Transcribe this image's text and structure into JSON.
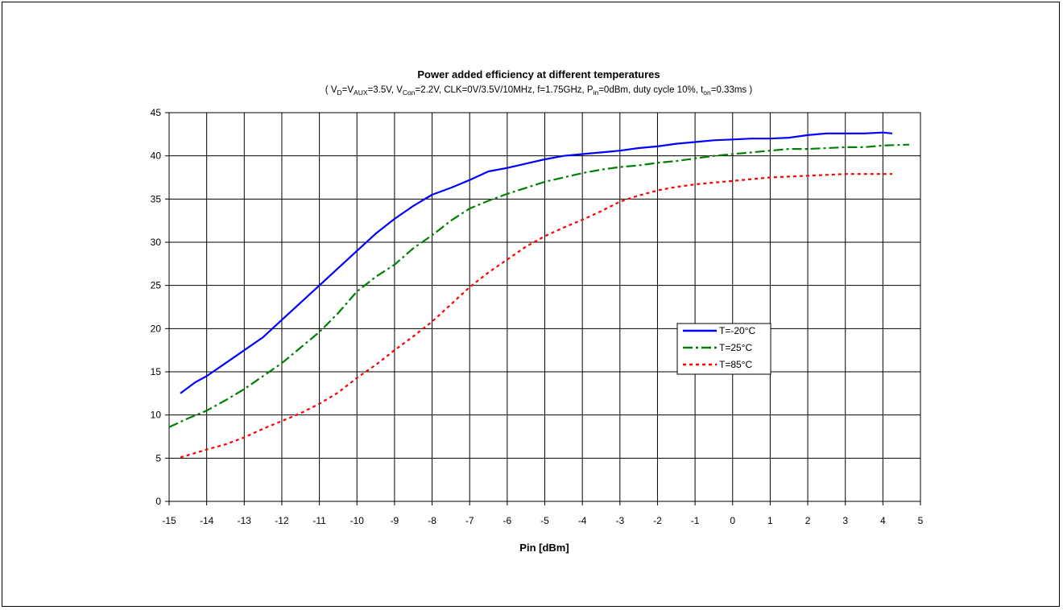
{
  "chart_data": {
    "type": "line",
    "title": "Power added efficiency at different temperatures",
    "subtitle": {
      "parts": [
        {
          "t": "( V"
        },
        {
          "t": "D",
          "sub": true
        },
        {
          "t": "=V"
        },
        {
          "t": "AUX",
          "sub": true
        },
        {
          "t": "=3.5V, V"
        },
        {
          "t": "Con",
          "sub": true
        },
        {
          "t": "=2.2V, CLK=0V/3.5V/10MHz, f=1.75GHz, P"
        },
        {
          "t": "in",
          "sub": true
        },
        {
          "t": "=0dBm, duty cycle 10%, t"
        },
        {
          "t": "on",
          "sub": true
        },
        {
          "t": "=0.33ms )"
        }
      ]
    },
    "xlabel": "Pin [dBm]",
    "ylabel": "",
    "xlim": [
      -15,
      5
    ],
    "ylim": [
      0,
      45
    ],
    "x_ticks": [
      "-15",
      "-14",
      "-13",
      "-12",
      "-11",
      "-10",
      "-9",
      "-8",
      "-7",
      "-6",
      "-5",
      "-4",
      "-3",
      "-2",
      "-1",
      "0",
      "1",
      "2",
      "3",
      "4",
      "5"
    ],
    "y_ticks": [
      "0",
      "5",
      "10",
      "15",
      "20",
      "25",
      "30",
      "35",
      "40",
      "45"
    ],
    "grid": true,
    "legend_position": "center-right",
    "series": [
      {
        "name": "T=-20°C",
        "color": "#0000ff",
        "dash": "solid",
        "x": [
          -14.7,
          -14.3,
          -14,
          -13.5,
          -13,
          -12.5,
          -12,
          -11.5,
          -11,
          -10.5,
          -10,
          -9.5,
          -9,
          -8.5,
          -8,
          -7.5,
          -7,
          -6.5,
          -6,
          -5.5,
          -5,
          -4.5,
          -4,
          -3.5,
          -3,
          -2.5,
          -2,
          -1.5,
          -1,
          -0.5,
          0,
          0.5,
          1,
          1.5,
          2,
          2.5,
          3,
          3.5,
          4,
          4.25
        ],
        "y": [
          12.5,
          13.8,
          14.5,
          16,
          17.5,
          19,
          21,
          23,
          25,
          27,
          29,
          31,
          32.7,
          34.2,
          35.5,
          36.3,
          37.2,
          38.2,
          38.6,
          39.1,
          39.6,
          40.0,
          40.2,
          40.4,
          40.6,
          40.9,
          41.1,
          41.4,
          41.6,
          41.8,
          41.9,
          42.0,
          42.0,
          42.1,
          42.4,
          42.6,
          42.6,
          42.6,
          42.7,
          42.6
        ]
      },
      {
        "name": "T=25°C",
        "color": "#008000",
        "dash": "dash-dot",
        "x": [
          -15,
          -14.5,
          -14,
          -13.5,
          -13,
          -12.5,
          -12,
          -11.5,
          -11,
          -10.5,
          -10,
          -9.5,
          -9,
          -8.5,
          -8,
          -7.5,
          -7,
          -6.5,
          -6,
          -5.5,
          -5,
          -4.5,
          -4,
          -3.5,
          -3,
          -2.5,
          -2,
          -1.5,
          -1,
          -0.5,
          0,
          0.5,
          1,
          1.5,
          2,
          2.5,
          3,
          3.5,
          4,
          4.7
        ],
        "y": [
          8.6,
          9.6,
          10.5,
          11.7,
          13.0,
          14.5,
          16,
          17.8,
          19.6,
          21.8,
          24.3,
          26.0,
          27.4,
          29.3,
          30.8,
          32.5,
          33.9,
          34.8,
          35.6,
          36.3,
          37.0,
          37.5,
          38.0,
          38.4,
          38.7,
          38.9,
          39.2,
          39.4,
          39.7,
          40.0,
          40.2,
          40.4,
          40.6,
          40.8,
          40.8,
          40.9,
          41.0,
          41.0,
          41.2,
          41.3
        ]
      },
      {
        "name": "T=85°C",
        "color": "#ff0000",
        "dash": "dotted",
        "x": [
          -14.7,
          -14.3,
          -14,
          -13.5,
          -13,
          -12.5,
          -12,
          -11.5,
          -11,
          -10.5,
          -10,
          -9.5,
          -9,
          -8.5,
          -8,
          -7.5,
          -7,
          -6.5,
          -6,
          -5.5,
          -5,
          -4.5,
          -4,
          -3.5,
          -3,
          -2.5,
          -2,
          -1.5,
          -1,
          -0.5,
          0,
          0.5,
          1,
          1.5,
          2,
          2.5,
          3,
          3.5,
          4,
          4.25
        ],
        "y": [
          5.1,
          5.6,
          6.0,
          6.6,
          7.4,
          8.4,
          9.3,
          10.2,
          11.3,
          12.6,
          14.3,
          15.8,
          17.5,
          19.1,
          20.8,
          22.8,
          24.8,
          26.5,
          28.0,
          29.5,
          30.7,
          31.7,
          32.6,
          33.6,
          34.7,
          35.4,
          36.0,
          36.4,
          36.7,
          36.9,
          37.1,
          37.3,
          37.5,
          37.6,
          37.7,
          37.8,
          37.9,
          37.9,
          37.9,
          37.9
        ]
      }
    ]
  }
}
